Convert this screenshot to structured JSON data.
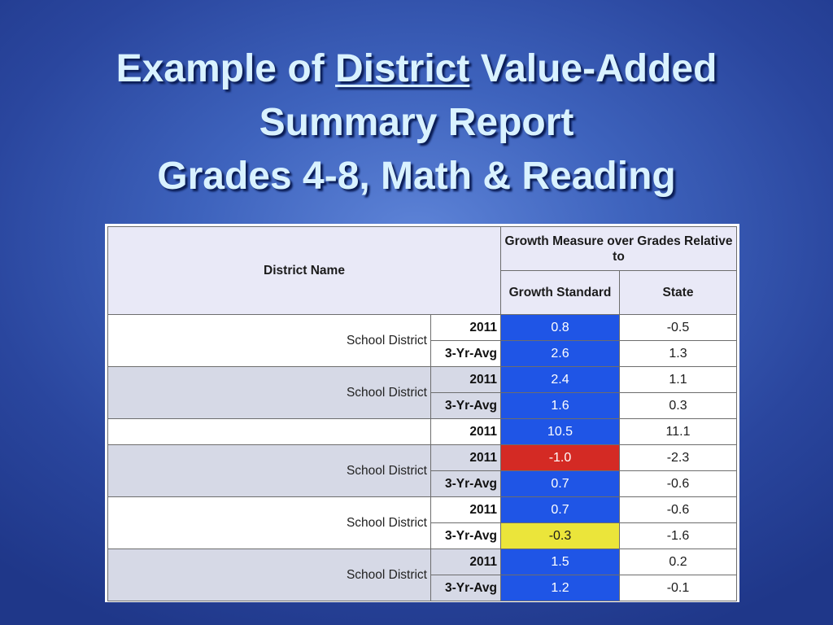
{
  "title": {
    "line1_pre": "Example of ",
    "line1_underlined": "District",
    "line1_post": " Value-Added",
    "line2": "Summary Report",
    "line3": "Grades 4-8, Math & Reading"
  },
  "table": {
    "headers": {
      "district_name": "District Name",
      "group": "Growth Measure over Grades Relative to",
      "growth_standard": "Growth Standard",
      "state": "State"
    },
    "colors": {
      "blue": "#1f55e6",
      "red": "#d42a24",
      "yellow": "#ebe53a",
      "text_on_blue": "#ffffff",
      "text_on_red": "#ffffff",
      "text_on_yellow": "#1b1b1b"
    },
    "groups": [
      {
        "name": "School District",
        "shade": "white",
        "rows": [
          {
            "year": "2011",
            "growth": "0.8",
            "growth_color": "blue",
            "state": "-0.5"
          },
          {
            "year": "3-Yr-Avg",
            "growth": "2.6",
            "growth_color": "blue",
            "state": "1.3"
          }
        ]
      },
      {
        "name": "School District",
        "shade": "gray",
        "rows": [
          {
            "year": "2011",
            "growth": "2.4",
            "growth_color": "blue",
            "state": "1.1"
          },
          {
            "year": "3-Yr-Avg",
            "growth": "1.6",
            "growth_color": "blue",
            "state": "0.3"
          }
        ]
      },
      {
        "name": "",
        "shade": "white",
        "rows": [
          {
            "year": "2011",
            "growth": "10.5",
            "growth_color": "blue",
            "state": "11.1"
          }
        ]
      },
      {
        "name": "School District",
        "shade": "gray",
        "rows": [
          {
            "year": "2011",
            "growth": "-1.0",
            "growth_color": "red",
            "state": "-2.3"
          },
          {
            "year": "3-Yr-Avg",
            "growth": "0.7",
            "growth_color": "blue",
            "state": "-0.6"
          }
        ]
      },
      {
        "name": "School District",
        "shade": "white",
        "rows": [
          {
            "year": "2011",
            "growth": "0.7",
            "growth_color": "blue",
            "state": "-0.6"
          },
          {
            "year": "3-Yr-Avg",
            "growth": "-0.3",
            "growth_color": "yellow",
            "state": "-1.6"
          }
        ]
      },
      {
        "name": "School District",
        "shade": "gray",
        "rows": [
          {
            "year": "2011",
            "growth": "1.5",
            "growth_color": "blue",
            "state": "0.2"
          },
          {
            "year": "3-Yr-Avg",
            "growth": "1.2",
            "growth_color": "blue",
            "state": "-0.1"
          }
        ]
      }
    ]
  }
}
